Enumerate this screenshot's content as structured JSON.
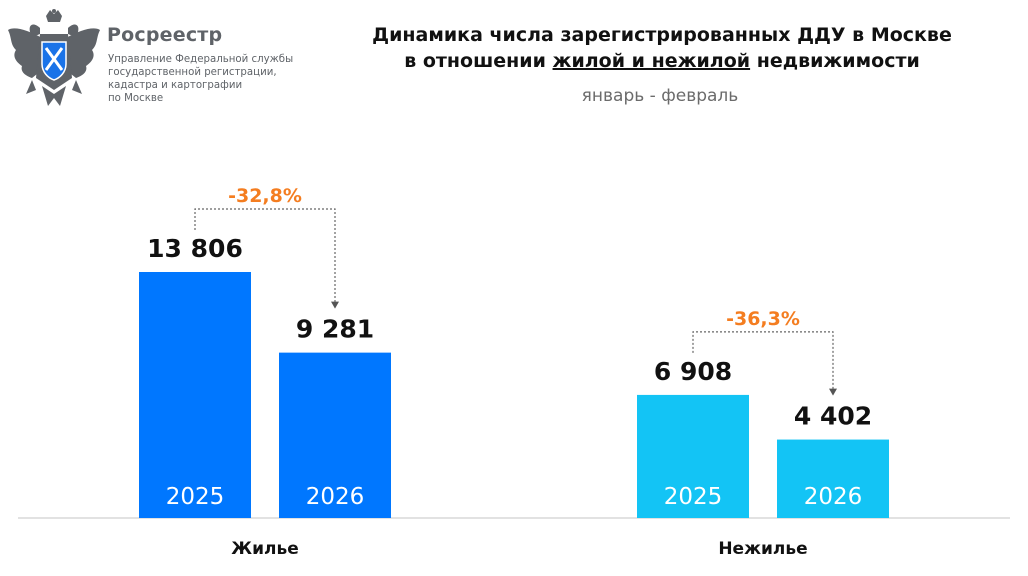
{
  "header": {
    "org_name": "Росреестр",
    "org_lines": [
      "Управление Федеральной службы",
      "государственной регистрации,",
      "кадастра и картографии",
      "по Москве"
    ],
    "logo_icon": "double-headed-eagle-emblem-icon"
  },
  "title": {
    "line1": "Динамика числа зарегистрированных ДДУ в Москве",
    "line2_prefix": "в отношении ",
    "line2_underlined": "жилой и нежилой",
    "line2_suffix": " недвижимости",
    "subtitle": "январь - февраль"
  },
  "colors": {
    "residential": "#0077ff",
    "nonresidential": "#13c4f5",
    "change_label": "#f47d20",
    "bar_year_text": "#ffffff",
    "connector": "#666666",
    "baseline": "#d9d9d9"
  },
  "chart_data": {
    "type": "bar",
    "title": "Динамика числа зарегистрированных ДДУ в Москве в отношении жилой и нежилой недвижимости",
    "subtitle": "январь - февраль",
    "categories": [
      "Жилье",
      "Нежилье"
    ],
    "groups": [
      {
        "category": "Жилье",
        "bars": [
          {
            "year": "2025",
            "value": 13806,
            "label": "13 806"
          },
          {
            "year": "2026",
            "value": 9281,
            "label": "9 281"
          }
        ],
        "change_label": "-32,8%"
      },
      {
        "category": "Нежилье",
        "bars": [
          {
            "year": "2025",
            "value": 6908,
            "label": "6 908"
          },
          {
            "year": "2026",
            "value": 4402,
            "label": "4 402"
          }
        ],
        "change_label": "-36,3%"
      }
    ],
    "ylim": [
      0,
      15000
    ],
    "grid": false,
    "legend": "none"
  }
}
